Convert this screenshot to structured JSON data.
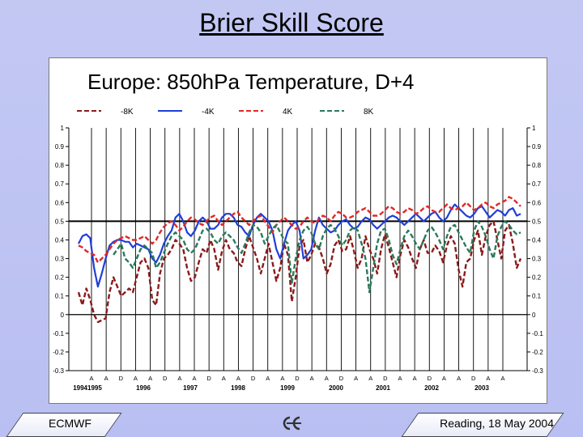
{
  "slide": {
    "title": "Brier Skill Score",
    "footer_left": "ECMWF",
    "footer_right": "Reading, 18 May 2004",
    "footer_logo_icon": "ecmwf-logo-icon"
  },
  "chart_data": {
    "type": "line",
    "title": "Europe: 850hPa Temperature, D+4",
    "ylim": [
      -0.3,
      1
    ],
    "yticks": [
      1,
      0.9,
      0.8,
      0.7,
      0.6,
      0.5,
      0.4,
      0.3,
      0.2,
      0.1,
      0,
      -0.1,
      -0.2,
      -0.3
    ],
    "grid": "vertical-monthly",
    "reference_line": 0.5,
    "legend_position": "top",
    "month_labels": [
      "A",
      "A",
      "D",
      "A",
      "A",
      "D",
      "A",
      "A",
      "D",
      "A",
      "A",
      "D",
      "A",
      "A",
      "D",
      "A",
      "A",
      "D",
      "A",
      "A",
      "D",
      "A",
      "A",
      "D",
      "A",
      "A",
      "D",
      "A",
      "A"
    ],
    "year_labels": [
      "19941995",
      "1996",
      "1997",
      "1998",
      "1999",
      "2000",
      "2001",
      "2002",
      "2003"
    ],
    "x_start": 1994.5,
    "x_end": 2004.0,
    "series": [
      {
        "name": "-8K",
        "color": "#8b1a1a",
        "dash": "dashed",
        "values": [
          0.12,
          0.05,
          0.14,
          0.08,
          0.0,
          -0.04,
          -0.03,
          -0.02,
          0.12,
          0.2,
          0.15,
          0.1,
          0.12,
          0.14,
          0.12,
          0.2,
          0.28,
          0.3,
          0.25,
          0.08,
          0.05,
          0.22,
          0.3,
          0.32,
          0.35,
          0.4,
          0.38,
          0.35,
          0.25,
          0.18,
          0.2,
          0.28,
          0.35,
          0.33,
          0.4,
          0.35,
          0.24,
          0.34,
          0.4,
          0.35,
          0.33,
          0.28,
          0.26,
          0.35,
          0.42,
          0.36,
          0.3,
          0.22,
          0.3,
          0.38,
          0.28,
          0.18,
          0.25,
          0.38,
          0.32,
          0.07,
          0.2,
          0.37,
          0.4,
          0.28,
          0.32,
          0.38,
          0.36,
          0.3,
          0.22,
          0.27,
          0.37,
          0.4,
          0.34,
          0.35,
          0.42,
          0.34,
          0.25,
          0.3,
          0.42,
          0.35,
          0.3,
          0.22,
          0.35,
          0.43,
          0.36,
          0.28,
          0.2,
          0.32,
          0.4,
          0.36,
          0.3,
          0.25,
          0.35,
          0.4,
          0.33,
          0.33,
          0.37,
          0.34,
          0.28,
          0.37,
          0.42,
          0.38,
          0.24,
          0.15,
          0.28,
          0.3,
          0.4,
          0.45,
          0.32,
          0.42,
          0.48,
          0.5,
          0.4,
          0.3,
          0.45,
          0.48,
          0.38,
          0.25,
          0.3
        ]
      },
      {
        "name": "-4K",
        "color": "#1f3fd8",
        "dash": "solid",
        "values": [
          0.38,
          0.42,
          0.43,
          0.41,
          0.25,
          0.15,
          0.22,
          0.3,
          0.37,
          0.39,
          0.4,
          0.4,
          0.39,
          0.39,
          0.36,
          0.38,
          0.37,
          0.36,
          0.35,
          0.3,
          0.28,
          0.32,
          0.38,
          0.42,
          0.45,
          0.52,
          0.54,
          0.5,
          0.44,
          0.42,
          0.45,
          0.5,
          0.52,
          0.5,
          0.46,
          0.46,
          0.48,
          0.52,
          0.54,
          0.54,
          0.52,
          0.48,
          0.47,
          0.44,
          0.42,
          0.48,
          0.52,
          0.54,
          0.52,
          0.5,
          0.45,
          0.35,
          0.3,
          0.38,
          0.45,
          0.48,
          0.5,
          0.45,
          0.3,
          0.32,
          0.35,
          0.45,
          0.52,
          0.48,
          0.46,
          0.44,
          0.45,
          0.48,
          0.5,
          0.51,
          0.48,
          0.46,
          0.47,
          0.5,
          0.52,
          0.51,
          0.48,
          0.46,
          0.48,
          0.5,
          0.52,
          0.53,
          0.52,
          0.5,
          0.48,
          0.5,
          0.52,
          0.54,
          0.52,
          0.5,
          0.52,
          0.54,
          0.55,
          0.52,
          0.5,
          0.52,
          0.56,
          0.59,
          0.57,
          0.55,
          0.53,
          0.52,
          0.54,
          0.57,
          0.58,
          0.55,
          0.52,
          0.54,
          0.56,
          0.55,
          0.53,
          0.56,
          0.57,
          0.53,
          0.54
        ]
      },
      {
        "name": "4K",
        "color": "#e02828",
        "dash": "dashed",
        "values": [
          0.37,
          0.36,
          0.34,
          0.33,
          0.32,
          0.28,
          0.3,
          0.32,
          0.35,
          0.38,
          0.4,
          0.41,
          0.42,
          0.41,
          0.4,
          0.4,
          0.41,
          0.42,
          0.4,
          0.38,
          0.4,
          0.44,
          0.47,
          0.49,
          0.5,
          0.48,
          0.45,
          0.47,
          0.5,
          0.52,
          0.51,
          0.49,
          0.48,
          0.5,
          0.52,
          0.53,
          0.5,
          0.48,
          0.5,
          0.52,
          0.54,
          0.55,
          0.52,
          0.5,
          0.48,
          0.5,
          0.52,
          0.53,
          0.5,
          0.47,
          0.44,
          0.48,
          0.5,
          0.52,
          0.5,
          0.48,
          0.46,
          0.47,
          0.5,
          0.52,
          0.5,
          0.49,
          0.51,
          0.53,
          0.52,
          0.5,
          0.53,
          0.55,
          0.54,
          0.52,
          0.52,
          0.53,
          0.55,
          0.56,
          0.57,
          0.55,
          0.53,
          0.53,
          0.54,
          0.56,
          0.58,
          0.57,
          0.55,
          0.54,
          0.55,
          0.57,
          0.56,
          0.54,
          0.55,
          0.57,
          0.58,
          0.56,
          0.55,
          0.55,
          0.57,
          0.59,
          0.57,
          0.56,
          0.57,
          0.58,
          0.6,
          0.58,
          0.56,
          0.57,
          0.59,
          0.6,
          0.58,
          0.57,
          0.59,
          0.6,
          0.61,
          0.63,
          0.62,
          0.6,
          0.58
        ]
      },
      {
        "name": "8K",
        "color": "#2a7a5a",
        "dash": "dashed",
        "values": [
          null,
          null,
          null,
          null,
          null,
          null,
          null,
          null,
          null,
          0.32,
          0.35,
          0.38,
          0.3,
          0.28,
          0.25,
          0.3,
          0.35,
          0.37,
          0.35,
          0.33,
          0.25,
          0.28,
          0.33,
          0.38,
          0.42,
          0.44,
          0.42,
          0.4,
          0.35,
          0.33,
          0.35,
          0.4,
          0.45,
          0.46,
          0.44,
          0.4,
          0.38,
          0.42,
          0.44,
          0.42,
          0.4,
          0.36,
          0.33,
          0.38,
          0.44,
          0.48,
          0.47,
          0.44,
          0.38,
          0.42,
          0.46,
          0.48,
          0.44,
          0.4,
          0.38,
          0.17,
          0.3,
          0.4,
          0.45,
          0.47,
          0.44,
          0.38,
          0.35,
          0.42,
          0.46,
          0.48,
          0.46,
          0.42,
          0.37,
          0.4,
          0.45,
          0.47,
          0.45,
          0.38,
          0.3,
          0.12,
          0.25,
          0.38,
          0.45,
          0.46,
          0.4,
          0.32,
          0.27,
          0.35,
          0.42,
          0.45,
          0.42,
          0.38,
          0.35,
          0.4,
          0.45,
          0.47,
          0.44,
          0.4,
          0.35,
          0.42,
          0.47,
          0.48,
          0.44,
          0.4,
          0.36,
          0.33,
          0.45,
          0.5,
          0.47,
          0.42,
          0.35,
          0.3,
          0.42,
          0.47,
          0.5,
          0.48,
          0.45,
          0.43,
          0.44
        ]
      }
    ]
  }
}
